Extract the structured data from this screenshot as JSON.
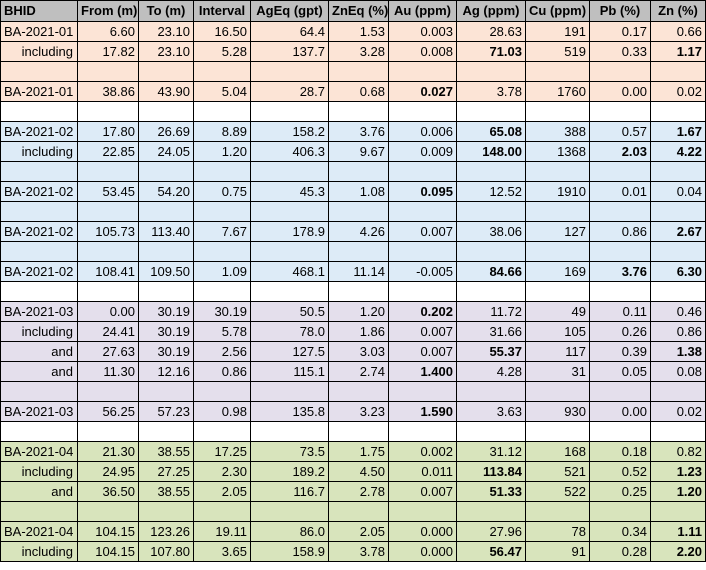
{
  "headers": [
    "BHID",
    "From (m)",
    "To (m)",
    "Interval",
    "AgEq (gpt)",
    "ZnEq (%)",
    "Au (ppm)",
    "Ag (ppm)",
    "Cu (ppm)",
    "Pb (%)",
    "Zn (%)"
  ],
  "colors": {
    "header": "#bfbfbf",
    "orange": "#fce4d6",
    "blue": "#ddebf7",
    "purple": "#e4dfec",
    "green": "#d8e4bc",
    "white": "#ffffff"
  },
  "rows": [
    {
      "color": "orange",
      "sub": false,
      "cells": [
        "BA-2021-01",
        "6.60",
        "23.10",
        "16.50",
        "64.4",
        "1.53",
        "0.003",
        "28.63",
        "191",
        "0.17",
        "0.66"
      ],
      "bold": []
    },
    {
      "color": "orange",
      "sub": true,
      "cells": [
        "including",
        "17.82",
        "23.10",
        "5.28",
        "137.7",
        "3.28",
        "0.008",
        "71.03",
        "519",
        "0.33",
        "1.17"
      ],
      "bold": [
        7,
        10
      ]
    },
    {
      "color": "orange",
      "sub": false,
      "cells": [
        "",
        "",
        "",
        "",
        "",
        "",
        "",
        "",
        "",
        "",
        ""
      ],
      "bold": []
    },
    {
      "color": "orange",
      "sub": false,
      "cells": [
        "BA-2021-01",
        "38.86",
        "43.90",
        "5.04",
        "28.7",
        "0.68",
        "0.027",
        "3.78",
        "1760",
        "0.00",
        "0.02"
      ],
      "bold": [
        6
      ]
    },
    {
      "color": "white",
      "sub": false,
      "cells": [
        "",
        "",
        "",
        "",
        "",
        "",
        "",
        "",
        "",
        "",
        ""
      ],
      "bold": []
    },
    {
      "color": "blue",
      "sub": false,
      "cells": [
        "BA-2021-02",
        "17.80",
        "26.69",
        "8.89",
        "158.2",
        "3.76",
        "0.006",
        "65.08",
        "388",
        "0.57",
        "1.67"
      ],
      "bold": [
        7,
        10
      ]
    },
    {
      "color": "blue",
      "sub": true,
      "cells": [
        "including",
        "22.85",
        "24.05",
        "1.20",
        "406.3",
        "9.67",
        "0.009",
        "148.00",
        "1368",
        "2.03",
        "4.22"
      ],
      "bold": [
        7,
        9,
        10
      ]
    },
    {
      "color": "blue",
      "sub": false,
      "cells": [
        "",
        "",
        "",
        "",
        "",
        "",
        "",
        "",
        "",
        "",
        ""
      ],
      "bold": []
    },
    {
      "color": "blue",
      "sub": false,
      "cells": [
        "BA-2021-02",
        "53.45",
        "54.20",
        "0.75",
        "45.3",
        "1.08",
        "0.095",
        "12.52",
        "1910",
        "0.01",
        "0.04"
      ],
      "bold": [
        6
      ]
    },
    {
      "color": "blue",
      "sub": false,
      "cells": [
        "",
        "",
        "",
        "",
        "",
        "",
        "",
        "",
        "",
        "",
        ""
      ],
      "bold": []
    },
    {
      "color": "blue",
      "sub": false,
      "cells": [
        "BA-2021-02",
        "105.73",
        "113.40",
        "7.67",
        "178.9",
        "4.26",
        "0.007",
        "38.06",
        "127",
        "0.86",
        "2.67"
      ],
      "bold": [
        10
      ]
    },
    {
      "color": "blue",
      "sub": false,
      "cells": [
        "",
        "",
        "",
        "",
        "",
        "",
        "",
        "",
        "",
        "",
        ""
      ],
      "bold": []
    },
    {
      "color": "blue",
      "sub": false,
      "cells": [
        "BA-2021-02",
        "108.41",
        "109.50",
        "1.09",
        "468.1",
        "11.14",
        "-0.005",
        "84.66",
        "169",
        "3.76",
        "6.30"
      ],
      "bold": [
        7,
        9,
        10
      ]
    },
    {
      "color": "white",
      "sub": false,
      "cells": [
        "",
        "",
        "",
        "",
        "",
        "",
        "",
        "",
        "",
        "",
        ""
      ],
      "bold": []
    },
    {
      "color": "purple",
      "sub": false,
      "cells": [
        "BA-2021-03",
        "0.00",
        "30.19",
        "30.19",
        "50.5",
        "1.20",
        "0.202",
        "11.72",
        "49",
        "0.11",
        "0.46"
      ],
      "bold": [
        6
      ]
    },
    {
      "color": "purple",
      "sub": true,
      "cells": [
        "including",
        "24.41",
        "30.19",
        "5.78",
        "78.0",
        "1.86",
        "0.007",
        "31.66",
        "105",
        "0.26",
        "0.86"
      ],
      "bold": []
    },
    {
      "color": "purple",
      "sub": true,
      "cells": [
        "and",
        "27.63",
        "30.19",
        "2.56",
        "127.5",
        "3.03",
        "0.007",
        "55.37",
        "117",
        "0.39",
        "1.38"
      ],
      "bold": [
        7,
        10
      ]
    },
    {
      "color": "purple",
      "sub": true,
      "cells": [
        "and",
        "11.30",
        "12.16",
        "0.86",
        "115.1",
        "2.74",
        "1.400",
        "4.28",
        "31",
        "0.05",
        "0.08"
      ],
      "bold": [
        6
      ]
    },
    {
      "color": "purple",
      "sub": false,
      "cells": [
        "",
        "",
        "",
        "",
        "",
        "",
        "",
        "",
        "",
        "",
        ""
      ],
      "bold": []
    },
    {
      "color": "purple",
      "sub": false,
      "cells": [
        "BA-2021-03",
        "56.25",
        "57.23",
        "0.98",
        "135.8",
        "3.23",
        "1.590",
        "3.63",
        "930",
        "0.00",
        "0.02"
      ],
      "bold": [
        6
      ]
    },
    {
      "color": "white",
      "sub": false,
      "cells": [
        "",
        "",
        "",
        "",
        "",
        "",
        "",
        "",
        "",
        "",
        ""
      ],
      "bold": []
    },
    {
      "color": "green",
      "sub": false,
      "cells": [
        "BA-2021-04",
        "21.30",
        "38.55",
        "17.25",
        "73.5",
        "1.75",
        "0.002",
        "31.12",
        "168",
        "0.18",
        "0.82"
      ],
      "bold": []
    },
    {
      "color": "green",
      "sub": true,
      "cells": [
        "including",
        "24.95",
        "27.25",
        "2.30",
        "189.2",
        "4.50",
        "0.011",
        "113.84",
        "521",
        "0.52",
        "1.23"
      ],
      "bold": [
        7,
        10
      ]
    },
    {
      "color": "green",
      "sub": true,
      "cells": [
        "and",
        "36.50",
        "38.55",
        "2.05",
        "116.7",
        "2.78",
        "0.007",
        "51.33",
        "522",
        "0.25",
        "1.20"
      ],
      "bold": [
        7,
        10
      ]
    },
    {
      "color": "green",
      "sub": false,
      "cells": [
        "",
        "",
        "",
        "",
        "",
        "",
        "",
        "",
        "",
        "",
        ""
      ],
      "bold": []
    },
    {
      "color": "green",
      "sub": false,
      "cells": [
        "BA-2021-04",
        "104.15",
        "123.26",
        "19.11",
        "86.0",
        "2.05",
        "0.000",
        "27.96",
        "78",
        "0.34",
        "1.11"
      ],
      "bold": [
        10
      ]
    },
    {
      "color": "green",
      "sub": true,
      "cells": [
        "including",
        "104.15",
        "107.80",
        "3.65",
        "158.9",
        "3.78",
        "0.000",
        "56.47",
        "91",
        "0.28",
        "2.20"
      ],
      "bold": [
        7,
        10
      ]
    }
  ]
}
